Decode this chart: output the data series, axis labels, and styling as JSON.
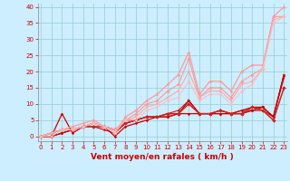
{
  "background_color": "#cceeff",
  "grid_color": "#99cccc",
  "x_label": "Vent moyen/en rafales ( km/h )",
  "x_ticks": [
    0,
    1,
    2,
    3,
    4,
    5,
    6,
    7,
    8,
    9,
    10,
    11,
    12,
    13,
    14,
    15,
    16,
    17,
    18,
    19,
    20,
    21,
    22,
    23
  ],
  "y_ticks": [
    0,
    5,
    10,
    15,
    20,
    25,
    30,
    35,
    40
  ],
  "ylim": [
    -1.5,
    41
  ],
  "xlim": [
    -0.3,
    23.3
  ],
  "series": [
    {
      "x": [
        0,
        1,
        2,
        3,
        4,
        5,
        6,
        7,
        8,
        9,
        10,
        11,
        12,
        13,
        14,
        15,
        16,
        17,
        18,
        19,
        20,
        21,
        22,
        23
      ],
      "y": [
        0,
        0,
        7,
        1,
        3,
        4,
        3,
        0,
        3,
        4,
        5,
        6,
        6,
        7,
        7,
        7,
        7,
        7,
        7,
        8,
        9,
        9,
        6,
        19
      ],
      "color": "#cc0000",
      "lw": 0.9,
      "marker": "D",
      "ms": 1.5
    },
    {
      "x": [
        0,
        1,
        2,
        3,
        4,
        5,
        6,
        7,
        8,
        9,
        10,
        11,
        12,
        13,
        14,
        15,
        16,
        17,
        18,
        19,
        20,
        21,
        22,
        23
      ],
      "y": [
        0,
        0,
        1,
        2,
        3,
        3,
        2,
        1,
        4,
        5,
        6,
        6,
        6,
        7,
        11,
        7,
        7,
        7,
        7,
        7,
        8,
        8,
        6,
        19
      ],
      "color": "#cc0000",
      "lw": 0.8,
      "marker": "^",
      "ms": 1.5
    },
    {
      "x": [
        0,
        1,
        2,
        3,
        4,
        5,
        6,
        7,
        8,
        9,
        10,
        11,
        12,
        13,
        14,
        15,
        16,
        17,
        18,
        19,
        20,
        21,
        22,
        23
      ],
      "y": [
        0,
        0,
        1,
        2,
        3,
        4,
        3,
        2,
        4,
        5,
        6,
        6,
        7,
        7,
        11,
        7,
        7,
        8,
        7,
        7,
        8,
        9,
        6,
        18
      ],
      "color": "#cc0000",
      "lw": 0.7,
      "marker": "s",
      "ms": 1.5
    },
    {
      "x": [
        0,
        1,
        2,
        3,
        4,
        5,
        6,
        7,
        8,
        9,
        10,
        11,
        12,
        13,
        14,
        15,
        16,
        17,
        18,
        19,
        20,
        21,
        22,
        23
      ],
      "y": [
        0,
        0,
        1,
        2,
        3,
        4,
        3,
        2,
        5,
        5,
        6,
        6,
        7,
        8,
        11,
        7,
        7,
        8,
        7,
        8,
        8,
        9,
        6,
        19
      ],
      "color": "#cc0000",
      "lw": 0.7,
      "marker": "o",
      "ms": 1.5
    },
    {
      "x": [
        0,
        1,
        2,
        3,
        4,
        5,
        6,
        7,
        8,
        9,
        10,
        11,
        12,
        13,
        14,
        15,
        16,
        17,
        18,
        19,
        20,
        21,
        22,
        23
      ],
      "y": [
        0,
        1,
        2,
        2,
        3,
        3,
        3,
        2,
        4,
        5,
        6,
        6,
        7,
        7,
        10,
        7,
        7,
        8,
        7,
        7,
        9,
        8,
        5,
        15
      ],
      "color": "#cc2222",
      "lw": 1.1,
      "marker": "D",
      "ms": 2.0
    },
    {
      "x": [
        0,
        1,
        2,
        3,
        4,
        5,
        6,
        7,
        8,
        9,
        10,
        11,
        12,
        13,
        14,
        15,
        16,
        17,
        18,
        19,
        20,
        21,
        22,
        23
      ],
      "y": [
        0,
        1,
        2,
        3,
        4,
        5,
        3,
        1,
        6,
        8,
        11,
        13,
        16,
        19,
        26,
        13,
        17,
        17,
        14,
        20,
        22,
        22,
        37,
        40
      ],
      "color": "#ff9999",
      "lw": 0.9,
      "marker": "o",
      "ms": 1.8
    },
    {
      "x": [
        0,
        1,
        2,
        3,
        4,
        5,
        6,
        7,
        8,
        9,
        10,
        11,
        12,
        13,
        14,
        15,
        16,
        17,
        18,
        19,
        20,
        21,
        22,
        23
      ],
      "y": [
        0,
        1,
        2,
        2,
        3,
        4,
        3,
        2,
        5,
        7,
        10,
        11,
        14,
        16,
        24,
        12,
        15,
        15,
        12,
        17,
        19,
        21,
        37,
        37
      ],
      "color": "#ff9999",
      "lw": 0.8,
      "marker": "D",
      "ms": 1.8
    },
    {
      "x": [
        0,
        1,
        2,
        3,
        4,
        5,
        6,
        7,
        8,
        9,
        10,
        11,
        12,
        13,
        14,
        15,
        16,
        17,
        18,
        19,
        20,
        21,
        22,
        23
      ],
      "y": [
        0,
        1,
        2,
        2,
        3,
        4,
        3,
        2,
        5,
        6,
        9,
        10,
        12,
        14,
        20,
        12,
        14,
        14,
        11,
        16,
        17,
        21,
        36,
        37
      ],
      "color": "#ffaaaa",
      "lw": 0.8,
      "marker": "s",
      "ms": 1.8
    },
    {
      "x": [
        0,
        1,
        2,
        3,
        4,
        5,
        6,
        7,
        8,
        9,
        10,
        11,
        12,
        13,
        14,
        15,
        16,
        17,
        18,
        19,
        20,
        21,
        22,
        23
      ],
      "y": [
        0,
        0,
        2,
        2,
        3,
        4,
        3,
        1,
        5,
        5,
        8,
        9,
        11,
        12,
        17,
        11,
        13,
        13,
        10,
        14,
        16,
        21,
        35,
        37
      ],
      "color": "#ffbbbb",
      "lw": 0.7,
      "marker": "o",
      "ms": 1.8
    }
  ],
  "tick_color": "#cc0000",
  "label_color": "#cc0000",
  "tick_fontsize": 5.0,
  "label_fontsize": 6.5,
  "spine_color": "#888888"
}
